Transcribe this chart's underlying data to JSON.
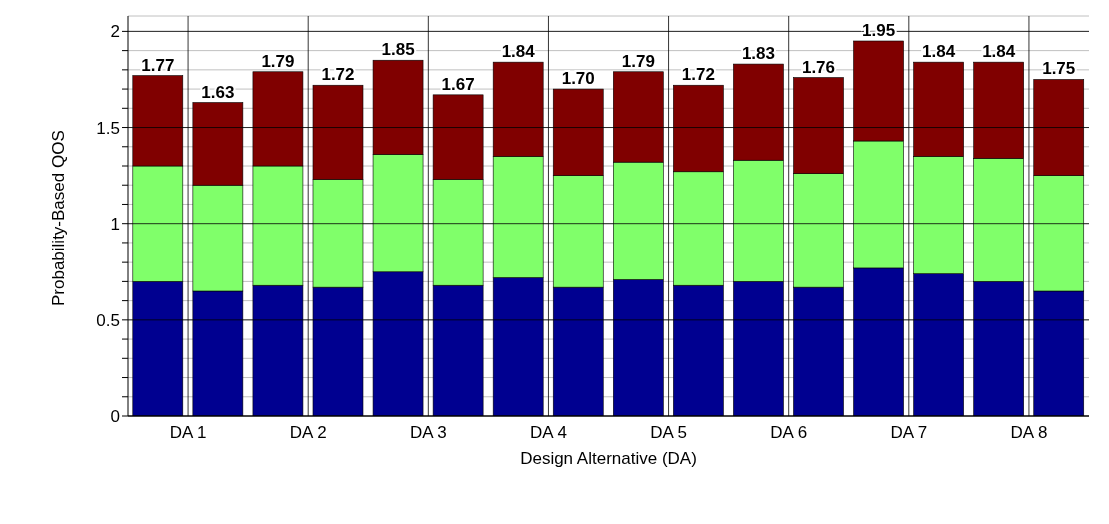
{
  "chart_data": {
    "type": "bar",
    "stacked": true,
    "xlabel": "Design Alternative (DA)",
    "ylabel": "Probability-Based QOS",
    "categories": [
      "DA 1",
      null,
      "DA 2",
      null,
      "DA 3",
      null,
      "DA 4",
      null,
      "DA 5",
      null,
      "DA 6",
      null,
      "DA 7",
      null,
      "DA 8",
      null
    ],
    "series": [
      {
        "color": "#000090",
        "values": [
          0.7,
          0.65,
          0.68,
          0.67,
          0.75,
          0.68,
          0.72,
          0.67,
          0.71,
          0.68,
          0.7,
          0.67,
          0.77,
          0.74,
          0.7,
          0.65
        ]
      },
      {
        "color": "#80ff6a",
        "values": [
          0.6,
          0.55,
          0.62,
          0.56,
          0.61,
          0.55,
          0.63,
          0.58,
          0.61,
          0.59,
          0.63,
          0.59,
          0.66,
          0.61,
          0.64,
          0.6
        ]
      },
      {
        "color": "#800000",
        "values": [
          0.47,
          0.43,
          0.49,
          0.49,
          0.49,
          0.44,
          0.49,
          0.45,
          0.47,
          0.45,
          0.5,
          0.5,
          0.52,
          0.49,
          0.5,
          0.5
        ]
      }
    ],
    "totals": [
      "1.77",
      "1.63",
      "1.79",
      "1.72",
      "1.85",
      "1.67",
      "1.84",
      "1.70",
      "1.79",
      "1.72",
      "1.83",
      "1.76",
      "1.95",
      "1.84",
      "1.84",
      "1.75"
    ],
    "ylim": [
      0,
      2.08
    ],
    "yticks": [
      0,
      {
        "value": 0.1,
        "label": null
      },
      {
        "value": 0.2,
        "label": null
      },
      {
        "value": 0.3,
        "label": null
      },
      {
        "value": 0.4,
        "label": null
      },
      0.5,
      {
        "value": 0.6,
        "label": null
      },
      {
        "value": 0.7,
        "label": null
      },
      {
        "value": 0.8,
        "label": null
      },
      {
        "value": 0.9,
        "label": null
      },
      1,
      {
        "value": 1.1,
        "label": null
      },
      {
        "value": 1.2,
        "label": null
      },
      {
        "value": 1.3,
        "label": null
      },
      {
        "value": 1.4,
        "label": null
      },
      1.5,
      {
        "value": 1.6,
        "label": null
      },
      {
        "value": 1.7,
        "label": null
      },
      {
        "value": 1.8,
        "label": null
      },
      {
        "value": 1.9,
        "label": null
      },
      2
    ],
    "grid": true,
    "legend": false
  }
}
